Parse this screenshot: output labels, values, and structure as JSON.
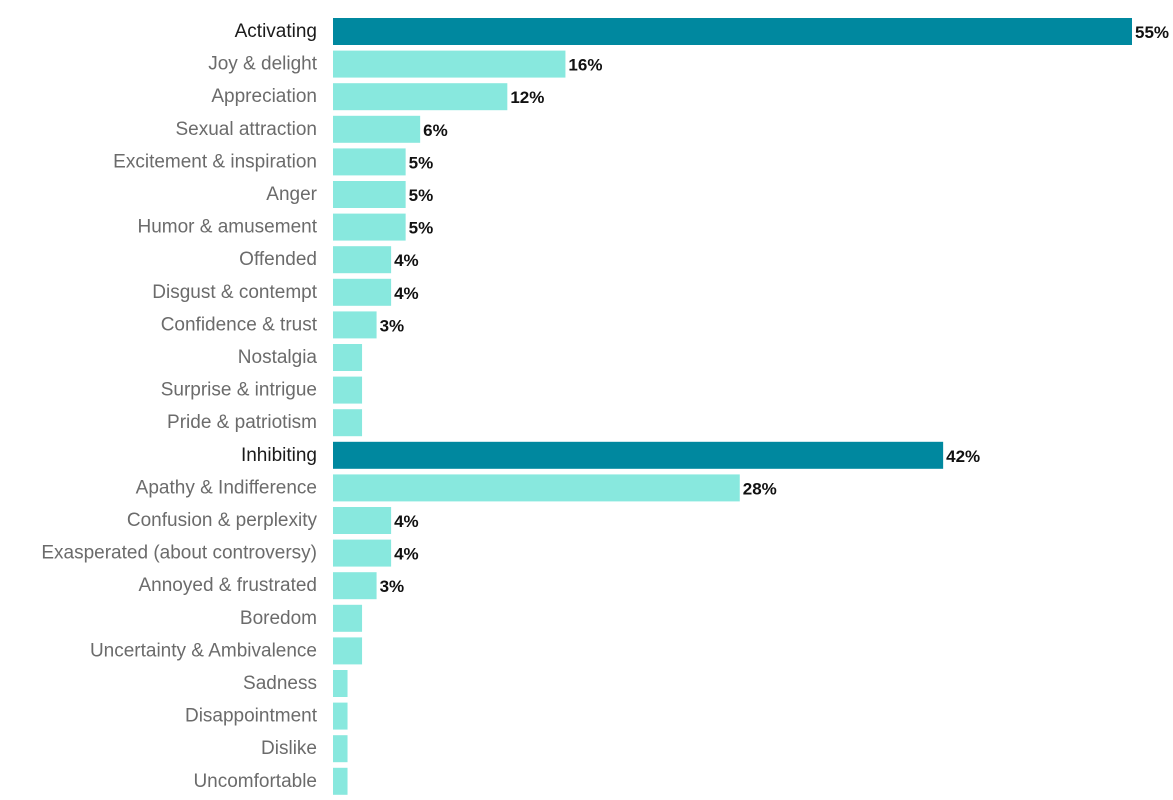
{
  "chart_data": {
    "type": "bar",
    "orientation": "horizontal",
    "title": "",
    "xlabel": "",
    "ylabel": "",
    "xlim": [
      0,
      55
    ],
    "grid": false,
    "legend": "none",
    "colors": {
      "header": "#00889f",
      "item": "#88e8de",
      "header_text": "#1a1a1a",
      "item_text": "#6b6b6b",
      "value_text": "#111111"
    },
    "categories": [
      {
        "label": "Activating",
        "value": 55,
        "value_label": "55%",
        "group_header": true
      },
      {
        "label": "Joy & delight",
        "value": 16,
        "value_label": "16%",
        "group_header": false
      },
      {
        "label": "Appreciation",
        "value": 12,
        "value_label": "12%",
        "group_header": false
      },
      {
        "label": "Sexual attraction",
        "value": 6,
        "value_label": "6%",
        "group_header": false
      },
      {
        "label": "Excitement & inspiration",
        "value": 5,
        "value_label": "5%",
        "group_header": false
      },
      {
        "label": "Anger",
        "value": 5,
        "value_label": "5%",
        "group_header": false
      },
      {
        "label": "Humor & amusement",
        "value": 5,
        "value_label": "5%",
        "group_header": false
      },
      {
        "label": "Offended",
        "value": 4,
        "value_label": "4%",
        "group_header": false
      },
      {
        "label": "Disgust & contempt",
        "value": 4,
        "value_label": "4%",
        "group_header": false
      },
      {
        "label": "Confidence & trust",
        "value": 3,
        "value_label": "3%",
        "group_header": false
      },
      {
        "label": "Nostalgia",
        "value": 2,
        "value_label": "",
        "group_header": false
      },
      {
        "label": "Surprise & intrigue",
        "value": 2,
        "value_label": "",
        "group_header": false
      },
      {
        "label": "Pride & patriotism",
        "value": 2,
        "value_label": "",
        "group_header": false
      },
      {
        "label": "Inhibiting",
        "value": 42,
        "value_label": "42%",
        "group_header": true
      },
      {
        "label": "Apathy & Indifference",
        "value": 28,
        "value_label": "28%",
        "group_header": false
      },
      {
        "label": "Confusion & perplexity",
        "value": 4,
        "value_label": "4%",
        "group_header": false
      },
      {
        "label": "Exasperated (about controversy)",
        "value": 4,
        "value_label": "4%",
        "group_header": false
      },
      {
        "label": "Annoyed & frustrated",
        "value": 3,
        "value_label": "3%",
        "group_header": false
      },
      {
        "label": "Boredom",
        "value": 2,
        "value_label": "",
        "group_header": false
      },
      {
        "label": "Uncertainty & Ambivalence",
        "value": 2,
        "value_label": "",
        "group_header": false
      },
      {
        "label": "Sadness",
        "value": 1,
        "value_label": "",
        "group_header": false
      },
      {
        "label": "Disappointment",
        "value": 1,
        "value_label": "",
        "group_header": false
      },
      {
        "label": "Dislike",
        "value": 1,
        "value_label": "",
        "group_header": false
      },
      {
        "label": "Uncomfortable",
        "value": 1,
        "value_label": "",
        "group_header": false
      }
    ]
  }
}
